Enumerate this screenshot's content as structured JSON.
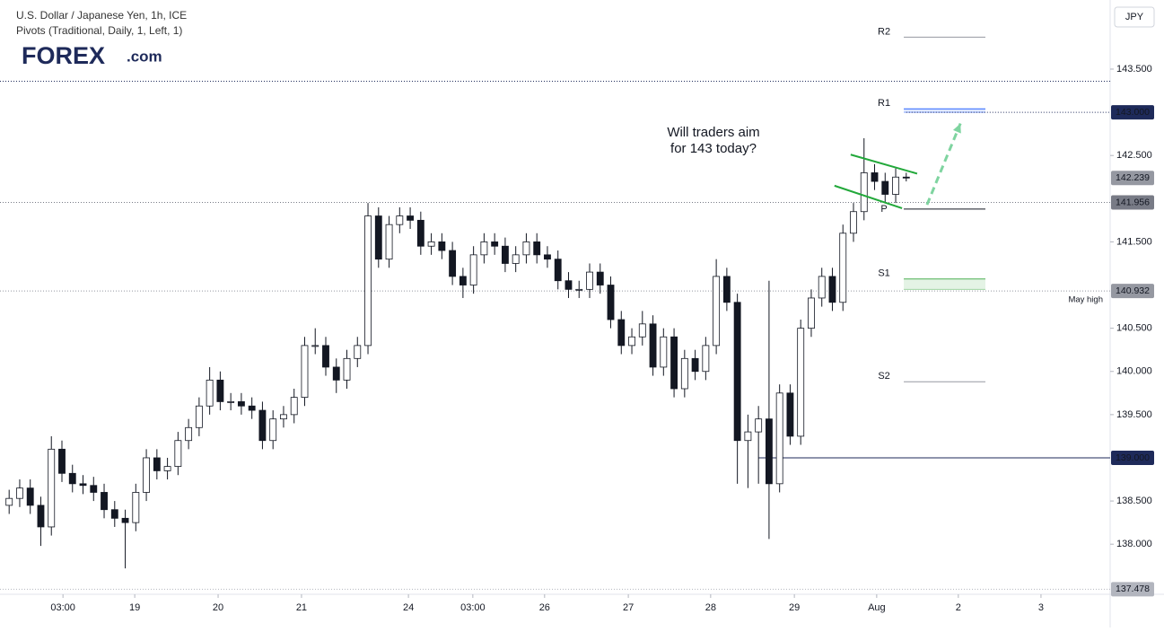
{
  "header": {
    "title": "U.S. Dollar / Japanese Yen, 1h, ICE",
    "indicator": "Pivots (Traditional, Daily, 1, Left, 1)",
    "logo": "FOREX",
    "logo_suffix": ".com",
    "currency": "JPY"
  },
  "chart_data": {
    "type": "candlestick",
    "annotation": [
      "Will traders aim",
      "for 143 today?"
    ],
    "annotation_color": "#22a83a",
    "x": [
      0,
      3,
      6,
      9,
      12,
      15,
      18,
      21,
      24,
      27,
      30,
      33,
      36,
      39,
      42,
      45,
      48,
      51,
      54,
      57,
      60,
      63,
      66,
      69,
      72,
      75,
      78,
      81,
      84,
      87,
      90,
      93,
      96,
      99,
      102,
      105,
      108,
      111,
      114,
      117,
      120,
      123,
      126,
      129,
      132,
      135,
      138,
      141,
      144,
      147,
      150,
      153,
      156,
      159,
      162,
      165,
      168,
      171,
      174,
      177,
      180,
      183,
      186,
      189,
      192,
      195,
      198,
      201,
      204,
      207,
      210,
      213,
      216,
      219,
      222,
      225,
      228,
      231,
      234,
      237,
      240,
      243,
      246,
      249,
      252,
      255
    ],
    "open": [
      138.45,
      138.53,
      138.65,
      138.45,
      138.2,
      139.1,
      138.82,
      138.7,
      138.68,
      138.6,
      138.4,
      138.3,
      138.25,
      138.6,
      139.0,
      138.85,
      138.9,
      139.2,
      139.35,
      139.6,
      139.9,
      139.65,
      139.65,
      139.6,
      139.55,
      139.2,
      139.45,
      139.5,
      139.7,
      140.3,
      140.3,
      140.05,
      139.9,
      140.15,
      140.3,
      141.8,
      141.3,
      141.7,
      141.8,
      141.75,
      141.45,
      141.5,
      141.4,
      141.1,
      141.0,
      141.35,
      141.5,
      141.45,
      141.25,
      141.35,
      141.5,
      141.35,
      141.3,
      141.05,
      140.95,
      140.95,
      141.15,
      141.0,
      140.6,
      140.3,
      140.4,
      140.55,
      140.05,
      140.4,
      139.8,
      140.15,
      140.0,
      140.3,
      141.1,
      140.8,
      139.2,
      139.3,
      139.45,
      138.7,
      139.75,
      139.25,
      140.5,
      140.85,
      141.1,
      140.8,
      141.6,
      141.85,
      142.3,
      142.2,
      142.05,
      142.25
    ],
    "high": [
      138.63,
      138.75,
      138.75,
      138.55,
      139.25,
      139.2,
      138.92,
      138.8,
      138.78,
      138.7,
      138.5,
      138.4,
      138.7,
      139.1,
      139.1,
      139.0,
      139.3,
      139.45,
      139.7,
      140.05,
      140.0,
      139.75,
      139.75,
      139.7,
      139.65,
      139.55,
      139.6,
      139.8,
      140.4,
      140.5,
      140.4,
      140.15,
      140.25,
      140.4,
      141.95,
      141.9,
      141.8,
      141.9,
      141.9,
      141.85,
      141.6,
      141.6,
      141.5,
      141.2,
      141.45,
      141.6,
      141.6,
      141.55,
      141.45,
      141.6,
      141.6,
      141.45,
      141.4,
      141.15,
      141.05,
      141.25,
      141.25,
      141.1,
      140.7,
      140.5,
      140.7,
      140.65,
      140.5,
      140.5,
      140.25,
      140.25,
      140.4,
      141.3,
      141.2,
      140.9,
      139.5,
      139.6,
      141.05,
      139.85,
      139.85,
      140.6,
      140.95,
      141.2,
      141.2,
      141.7,
      141.95,
      142.7,
      142.4,
      142.3,
      142.35,
      142.3
    ],
    "low": [
      138.35,
      138.43,
      138.35,
      137.98,
      138.1,
      138.72,
      138.6,
      138.58,
      138.5,
      138.3,
      138.2,
      137.72,
      138.15,
      138.5,
      138.75,
      138.75,
      138.8,
      139.1,
      139.25,
      139.5,
      139.55,
      139.55,
      139.5,
      139.45,
      139.1,
      139.1,
      139.35,
      139.4,
      139.6,
      140.2,
      139.95,
      139.75,
      139.8,
      140.05,
      140.2,
      141.2,
      141.2,
      141.6,
      141.65,
      141.35,
      141.35,
      141.3,
      141.0,
      140.85,
      140.9,
      141.25,
      141.35,
      141.15,
      141.15,
      141.25,
      141.25,
      141.2,
      140.95,
      140.85,
      140.85,
      140.85,
      140.9,
      140.5,
      140.2,
      140.2,
      140.3,
      139.95,
      139.95,
      139.7,
      139.7,
      139.9,
      139.9,
      140.2,
      140.7,
      138.7,
      138.65,
      138.7,
      138.06,
      138.6,
      139.15,
      139.15,
      140.4,
      140.75,
      140.7,
      140.7,
      141.5,
      141.75,
      142.1,
      141.95,
      141.95,
      142.2
    ],
    "close": [
      138.53,
      138.65,
      138.45,
      138.2,
      139.1,
      138.82,
      138.7,
      138.68,
      138.6,
      138.4,
      138.3,
      138.25,
      138.6,
      139.0,
      138.85,
      138.9,
      139.2,
      139.35,
      139.6,
      139.9,
      139.65,
      139.65,
      139.6,
      139.55,
      139.2,
      139.45,
      139.5,
      139.7,
      140.3,
      140.3,
      140.05,
      139.9,
      140.15,
      140.3,
      141.8,
      141.3,
      141.7,
      141.8,
      141.75,
      141.45,
      141.5,
      141.4,
      141.1,
      141.0,
      141.35,
      141.5,
      141.45,
      141.25,
      141.35,
      141.5,
      141.35,
      141.3,
      141.05,
      140.95,
      140.95,
      141.15,
      141.0,
      140.6,
      140.3,
      140.4,
      140.55,
      140.05,
      140.4,
      139.8,
      140.15,
      140.0,
      140.3,
      141.1,
      140.8,
      139.2,
      139.3,
      139.45,
      138.7,
      139.75,
      139.25,
      140.5,
      140.85,
      141.1,
      140.8,
      141.6,
      141.85,
      142.3,
      142.2,
      142.05,
      142.25,
      142.239
    ],
    "up_color": "#ffffff",
    "down_color": "#131722",
    "wick_color": "#131722",
    "xlim": [
      -2.6,
      312.96
    ],
    "ylim": [
      137.42,
      144.3
    ],
    "xticks": [
      {
        "value": 15.3,
        "label": "03:00"
      },
      {
        "value": 35.7,
        "label": "19"
      },
      {
        "value": 59.4,
        "label": "20"
      },
      {
        "value": 83.1,
        "label": "21"
      },
      {
        "value": 113.5,
        "label": "24"
      },
      {
        "value": 131.8,
        "label": "03:00"
      },
      {
        "value": 152.2,
        "label": "26"
      },
      {
        "value": 176,
        "label": "27"
      },
      {
        "value": 199.4,
        "label": "28"
      },
      {
        "value": 223.2,
        "label": "29"
      },
      {
        "value": 246.6,
        "label": "Aug"
      },
      {
        "value": 269.8,
        "label": "2"
      },
      {
        "value": 293.3,
        "label": "3"
      }
    ],
    "yticks": [
      {
        "value": 138,
        "label": "138.000"
      },
      {
        "value": 138.5,
        "label": "138.500"
      },
      {
        "value": 139.5,
        "label": "139.500"
      },
      {
        "value": 140,
        "label": "140.000"
      },
      {
        "value": 140.5,
        "label": "140.500"
      },
      {
        "value": 141.5,
        "label": "141.500"
      },
      {
        "value": 142.5,
        "label": "142.500"
      },
      {
        "value": 143.5,
        "label": "143.500"
      }
    ],
    "levels": [
      {
        "value": 143.36,
        "line": "dotted",
        "color": "#1e2a5a"
      },
      {
        "value": 143.0,
        "label": "143.000",
        "line": "dotted",
        "color": "#1e2a5a",
        "text_color": "#ffffff",
        "x_start": 255
      },
      {
        "value": 142.239,
        "label": "142.239",
        "line": "none",
        "color": "#9598a1",
        "text_color": "#131722"
      },
      {
        "value": 141.956,
        "label": "141.956",
        "line": "dotted",
        "color": "#787b86",
        "text_color": "#131722"
      },
      {
        "value": 140.932,
        "label": "140.932",
        "line": "dotted",
        "color": "#9598a1",
        "text_color": "#131722",
        "note": "May high"
      },
      {
        "value": 139.0,
        "label": "139.000",
        "line": "solid",
        "color": "#1e2a5a",
        "text_color": "#ffffff",
        "x_start": 213
      },
      {
        "value": 137.478,
        "label": "137.478",
        "line": "dotted",
        "color": "#b2b5be",
        "text_color": "#131722"
      }
    ],
    "pivot_x": [
      254.3,
      277.5
    ],
    "pivots": [
      {
        "name": "R2",
        "value": 143.87,
        "color": "#9598a1"
      },
      {
        "name": "R1",
        "value": 143.04,
        "band": 143.0,
        "color": "#2962ff"
      },
      {
        "name": "P",
        "value": 141.88,
        "color": "#131722"
      },
      {
        "name": "S1",
        "value": 141.07,
        "band": 140.95,
        "color": "#4caf50"
      },
      {
        "name": "S2",
        "value": 139.88,
        "color": "#9598a1"
      }
    ],
    "channel": {
      "color": "#22a83a",
      "upper": {
        "x": [
          239.2,
          258.1
        ],
        "y": [
          142.51,
          142.29
        ]
      },
      "lower": {
        "x": [
          234.6,
          253.8
        ],
        "y": [
          142.15,
          141.89
        ]
      }
    },
    "arrow": {
      "color": "#7fd4a0",
      "x": [
        260.9,
        270.4
      ],
      "y": [
        141.93,
        142.87
      ]
    }
  }
}
